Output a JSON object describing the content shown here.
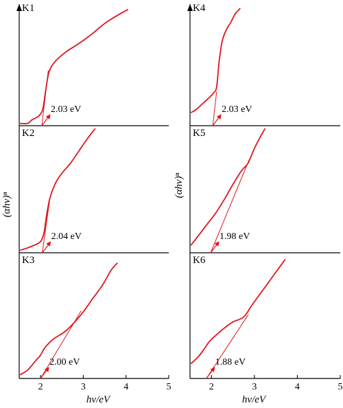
{
  "chart_data": {
    "type": "line",
    "xlabel": "hv/eV",
    "ylabel": "(αhv)ⁿ",
    "xlim": [
      1.5,
      5
    ],
    "xticks": [
      "2",
      "3",
      "4",
      "5"
    ],
    "grid": false,
    "panels": [
      {
        "id": "K1",
        "label": "K1",
        "bandgap": 2.03,
        "bandgap_label": "2.03 eV",
        "tangent": [
          [
            2.03,
            0.0
          ],
          [
            2.18,
            0.47
          ]
        ],
        "curve": [
          [
            1.52,
            0.02
          ],
          [
            1.7,
            0.02
          ],
          [
            1.8,
            0.05
          ],
          [
            1.95,
            0.08
          ],
          [
            2.05,
            0.14
          ],
          [
            2.12,
            0.3
          ],
          [
            2.2,
            0.46
          ],
          [
            2.35,
            0.55
          ],
          [
            2.6,
            0.63
          ],
          [
            2.9,
            0.7
          ],
          [
            3.2,
            0.78
          ],
          [
            3.5,
            0.87
          ],
          [
            3.8,
            0.94
          ],
          [
            4.05,
            0.99
          ]
        ]
      },
      {
        "id": "K2",
        "label": "K2",
        "bandgap": 2.04,
        "bandgap_label": "2.04 eV",
        "tangent": [
          [
            2.04,
            0.0
          ],
          [
            2.22,
            0.44
          ]
        ],
        "curve": [
          [
            1.52,
            0.02
          ],
          [
            1.7,
            0.04
          ],
          [
            1.85,
            0.06
          ],
          [
            2.0,
            0.09
          ],
          [
            2.08,
            0.16
          ],
          [
            2.14,
            0.3
          ],
          [
            2.22,
            0.44
          ],
          [
            2.35,
            0.56
          ],
          [
            2.5,
            0.64
          ],
          [
            2.7,
            0.72
          ],
          [
            2.9,
            0.82
          ],
          [
            3.1,
            0.92
          ],
          [
            3.28,
            1.0
          ]
        ]
      },
      {
        "id": "K3",
        "label": "K3",
        "bandgap": 2.0,
        "bandgap_label": "2.00 eV",
        "tangent": [
          [
            2.0,
            0.0
          ],
          [
            2.95,
            0.55
          ]
        ],
        "curve": [
          [
            1.52,
            0.03
          ],
          [
            1.7,
            0.07
          ],
          [
            1.9,
            0.15
          ],
          [
            2.0,
            0.19
          ],
          [
            2.1,
            0.25
          ],
          [
            2.3,
            0.32
          ],
          [
            2.6,
            0.39
          ],
          [
            2.95,
            0.52
          ],
          [
            3.2,
            0.64
          ],
          [
            3.45,
            0.76
          ],
          [
            3.65,
            0.88
          ],
          [
            3.8,
            0.94
          ]
        ]
      },
      {
        "id": "K4",
        "label": "K4",
        "bandgap": 2.03,
        "bandgap_label": "2.03 eV",
        "tangent": [
          [
            2.03,
            0.0
          ],
          [
            2.12,
            0.29
          ]
        ],
        "curve": [
          [
            1.52,
            0.11
          ],
          [
            1.65,
            0.14
          ],
          [
            1.8,
            0.19
          ],
          [
            1.95,
            0.24
          ],
          [
            2.05,
            0.28
          ],
          [
            2.12,
            0.33
          ],
          [
            2.18,
            0.55
          ],
          [
            2.25,
            0.72
          ],
          [
            2.35,
            0.82
          ],
          [
            2.45,
            0.88
          ],
          [
            2.55,
            0.95
          ],
          [
            2.67,
            1.0
          ]
        ]
      },
      {
        "id": "K5",
        "label": "K5",
        "bandgap": 1.98,
        "bandgap_label": "1.98 eV",
        "tangent": [
          [
            1.98,
            0.0
          ],
          [
            2.88,
            0.75
          ]
        ],
        "curve": [
          [
            1.52,
            0.06
          ],
          [
            1.7,
            0.14
          ],
          [
            1.9,
            0.23
          ],
          [
            2.1,
            0.32
          ],
          [
            2.3,
            0.43
          ],
          [
            2.5,
            0.55
          ],
          [
            2.7,
            0.66
          ],
          [
            2.85,
            0.72
          ],
          [
            3.0,
            0.84
          ],
          [
            3.15,
            0.94
          ],
          [
            3.25,
            1.0
          ]
        ]
      },
      {
        "id": "K6",
        "label": "K6",
        "bandgap": 1.88,
        "bandgap_label": "1.88 eV",
        "tangent": [
          [
            1.88,
            0.0
          ],
          [
            2.86,
            0.52
          ]
        ],
        "curve": [
          [
            1.52,
            0.12
          ],
          [
            1.7,
            0.18
          ],
          [
            1.85,
            0.25
          ],
          [
            1.95,
            0.3
          ],
          [
            2.1,
            0.35
          ],
          [
            2.3,
            0.41
          ],
          [
            2.5,
            0.46
          ],
          [
            2.75,
            0.5
          ],
          [
            2.95,
            0.6
          ],
          [
            3.2,
            0.72
          ],
          [
            3.45,
            0.84
          ],
          [
            3.72,
            0.97
          ]
        ]
      }
    ]
  },
  "colors": {
    "curve": "#e0141b",
    "axis": "#000000"
  }
}
